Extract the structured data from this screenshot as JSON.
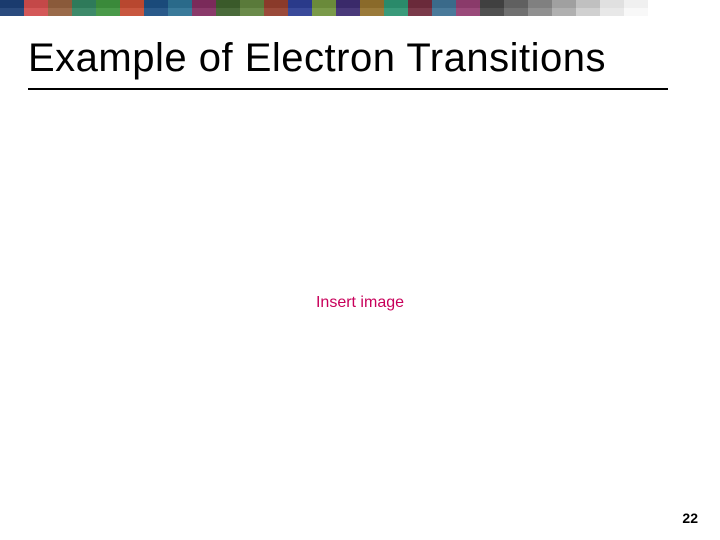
{
  "title": "Example of Electron Transitions",
  "insertText": "Insert image",
  "pageNumber": "22",
  "colorBar": {
    "row1": [
      "#1a3b6e",
      "#c44848",
      "#8a5a3a",
      "#2e7a5a",
      "#3a8a3a",
      "#b8472f",
      "#1a4a7a",
      "#2a6a8a",
      "#7a2a5a",
      "#3a5a2a",
      "#5a7a3a",
      "#8a3a2a",
      "#2a3a8a",
      "#6a8a3a",
      "#3a2a6a",
      "#8a6a2a",
      "#2a8a6a",
      "#6a2a3a",
      "#3a6a8a",
      "#8a3a6a",
      "#404040",
      "#606060",
      "#808080",
      "#a0a0a0",
      "#c0c0c0",
      "#e0e0e0",
      "#f0f0f0",
      "#ffffff",
      "#ffffff",
      "#ffffff"
    ],
    "row2": [
      "#2a4b7e",
      "#d45858",
      "#9a6a4a",
      "#3e8a6a",
      "#4a9a4a",
      "#c8573f",
      "#2a5a8a",
      "#3a7a9a",
      "#8a3a6a",
      "#4a6a3a",
      "#6a8a4a",
      "#9a4a3a",
      "#3a4a9a",
      "#7a9a4a",
      "#4a3a7a",
      "#9a7a3a",
      "#3a9a7a",
      "#7a3a4a",
      "#4a7a9a",
      "#9a4a7a",
      "#505050",
      "#707070",
      "#909090",
      "#b0b0b0",
      "#d0d0d0",
      "#e8e8e8",
      "#f8f8f8",
      "#ffffff",
      "#ffffff",
      "#ffffff"
    ]
  },
  "styles": {
    "titleColor": "#000000",
    "titleFontSize": 40,
    "insertTextColor": "#c8005a",
    "insertTextFontSize": 16,
    "pageNumberFontSize": 14,
    "pageNumberColor": "#000000",
    "background": "#ffffff"
  }
}
